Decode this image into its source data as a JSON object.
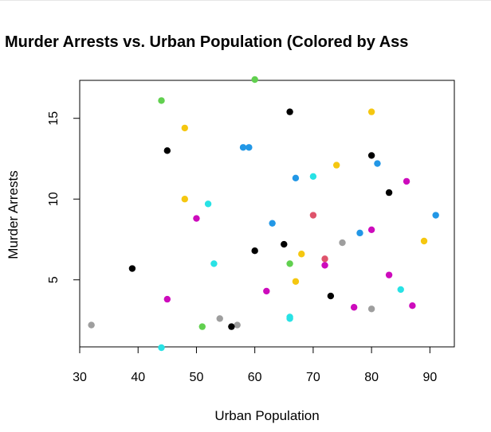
{
  "chart_data": {
    "type": "scatter",
    "title": "Murder Arrests vs. Urban Population (Colored by Ass",
    "xlabel": "Urban Population",
    "ylabel": "Murder Arrests",
    "xlim": [
      30,
      93
    ],
    "ylim": [
      0.8,
      17.4
    ],
    "xticks": [
      30,
      40,
      50,
      60,
      70,
      80,
      90
    ],
    "yticks": [
      5,
      10,
      15
    ],
    "grid": false,
    "points": [
      {
        "x": 58,
        "y": 13.2,
        "color": "#2297e6"
      },
      {
        "x": 48,
        "y": 10.0,
        "color": "#f5c710"
      },
      {
        "x": 80,
        "y": 8.1,
        "color": "#cd0bbc"
      },
      {
        "x": 50,
        "y": 8.8,
        "color": "#cd0bbc"
      },
      {
        "x": 91,
        "y": 9.0,
        "color": "#2297e6"
      },
      {
        "x": 78,
        "y": 7.9,
        "color": "#2297e6"
      },
      {
        "x": 77,
        "y": 3.3,
        "color": "#cd0bbc"
      },
      {
        "x": 72,
        "y": 5.9,
        "color": "#cd0bbc"
      },
      {
        "x": 80,
        "y": 15.4,
        "color": "#f5c710"
      },
      {
        "x": 60,
        "y": 17.4,
        "color": "#61d04f"
      },
      {
        "x": 83,
        "y": 5.3,
        "color": "#cd0bbc"
      },
      {
        "x": 54,
        "y": 2.6,
        "color": "#9e9e9e"
      },
      {
        "x": 83,
        "y": 10.4,
        "color": "#000000"
      },
      {
        "x": 65,
        "y": 7.2,
        "color": "#000000"
      },
      {
        "x": 57,
        "y": 2.2,
        "color": "#9e9e9e"
      },
      {
        "x": 66,
        "y": 6.0,
        "color": "#61d04f"
      },
      {
        "x": 52,
        "y": 9.7,
        "color": "#28e2e5"
      },
      {
        "x": 66,
        "y": 15.4,
        "color": "#000000"
      },
      {
        "x": 51,
        "y": 2.1,
        "color": "#61d04f"
      },
      {
        "x": 67,
        "y": 11.3,
        "color": "#2297e6"
      },
      {
        "x": 85,
        "y": 4.4,
        "color": "#28e2e5"
      },
      {
        "x": 74,
        "y": 12.1,
        "color": "#f5c710"
      },
      {
        "x": 66,
        "y": 2.7,
        "color": "#28e2e5"
      },
      {
        "x": 44,
        "y": 16.1,
        "color": "#61d04f"
      },
      {
        "x": 70,
        "y": 9.0,
        "color": "#df536b"
      },
      {
        "x": 53,
        "y": 6.0,
        "color": "#28e2e5"
      },
      {
        "x": 62,
        "y": 4.3,
        "color": "#cd0bbc"
      },
      {
        "x": 81,
        "y": 12.2,
        "color": "#2297e6"
      },
      {
        "x": 56,
        "y": 2.1,
        "color": "#000000"
      },
      {
        "x": 89,
        "y": 7.4,
        "color": "#f5c710"
      },
      {
        "x": 70,
        "y": 11.4,
        "color": "#28e2e5"
      },
      {
        "x": 86,
        "y": 11.1,
        "color": "#cd0bbc"
      },
      {
        "x": 45,
        "y": 13.0,
        "color": "#000000"
      },
      {
        "x": 44,
        "y": 0.8,
        "color": "#28e2e5"
      },
      {
        "x": 75,
        "y": 7.3,
        "color": "#9e9e9e"
      },
      {
        "x": 68,
        "y": 6.6,
        "color": "#f5c710"
      },
      {
        "x": 67,
        "y": 4.9,
        "color": "#f5c710"
      },
      {
        "x": 72,
        "y": 6.3,
        "color": "#df536b"
      },
      {
        "x": 87,
        "y": 3.4,
        "color": "#cd0bbc"
      },
      {
        "x": 48,
        "y": 14.4,
        "color": "#f5c710"
      },
      {
        "x": 45,
        "y": 3.8,
        "color": "#cd0bbc"
      },
      {
        "x": 59,
        "y": 13.2,
        "color": "#2297e6"
      },
      {
        "x": 80,
        "y": 12.7,
        "color": "#000000"
      },
      {
        "x": 80,
        "y": 3.2,
        "color": "#9e9e9e"
      },
      {
        "x": 32,
        "y": 2.2,
        "color": "#9e9e9e"
      },
      {
        "x": 63,
        "y": 8.5,
        "color": "#2297e6"
      },
      {
        "x": 73,
        "y": 4.0,
        "color": "#000000"
      },
      {
        "x": 39,
        "y": 5.7,
        "color": "#000000"
      },
      {
        "x": 66,
        "y": 2.6,
        "color": "#28e2e5"
      },
      {
        "x": 60,
        "y": 6.8,
        "color": "#000000"
      }
    ]
  }
}
